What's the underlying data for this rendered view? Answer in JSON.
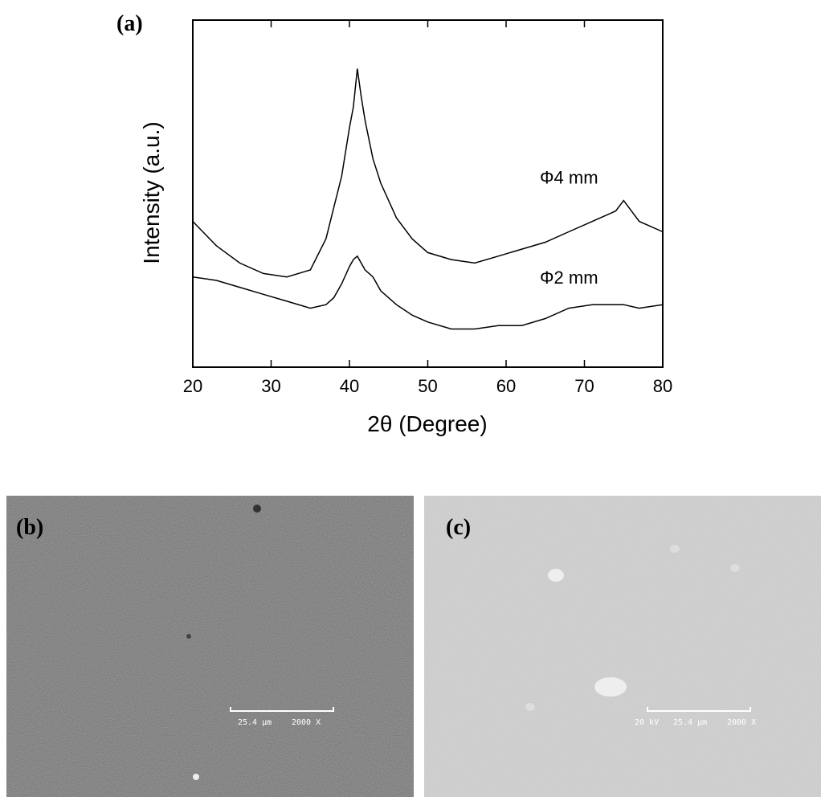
{
  "chart_data": {
    "type": "line",
    "panel_label": "(a)",
    "x_label": "2θ (Degree)",
    "y_label": "Intensity (a.u.)",
    "x": [
      20,
      23,
      26,
      29,
      32,
      35,
      37,
      38,
      39,
      40,
      40.5,
      41,
      41.5,
      42,
      43,
      44,
      46,
      48,
      50,
      53,
      56,
      59,
      62,
      65,
      68,
      71,
      74,
      75,
      77,
      80
    ],
    "series": [
      {
        "name": "Φ4 mm",
        "color": "#000000",
        "values": [
          42,
          35,
          30,
          27,
          26,
          28,
          37,
          46,
          55,
          69,
          75,
          86,
          78,
          71,
          60,
          53,
          43,
          37,
          33,
          31,
          30,
          32,
          34,
          36,
          39,
          42,
          45,
          48,
          42,
          39
        ]
      },
      {
        "name": "Φ2 mm",
        "color": "#000000",
        "values": [
          26,
          25,
          23,
          21,
          19,
          17,
          18,
          20,
          24,
          29,
          31,
          32,
          30,
          28,
          26,
          22,
          18,
          15,
          13,
          11,
          11,
          12,
          12,
          14,
          17,
          18,
          18,
          18,
          17,
          18
        ]
      }
    ],
    "xlim": [
      20,
      80
    ],
    "xticks": [
      20,
      30,
      40,
      50,
      60,
      70,
      80
    ],
    "ylim": [
      0,
      100
    ]
  },
  "images": [
    {
      "label": "(b)",
      "scale_texts": [
        "25.4 µm",
        "2000 X"
      ]
    },
    {
      "label": "(c)",
      "scale_texts": [
        "20 kV",
        "25.4 µm",
        "2000 X"
      ]
    }
  ]
}
